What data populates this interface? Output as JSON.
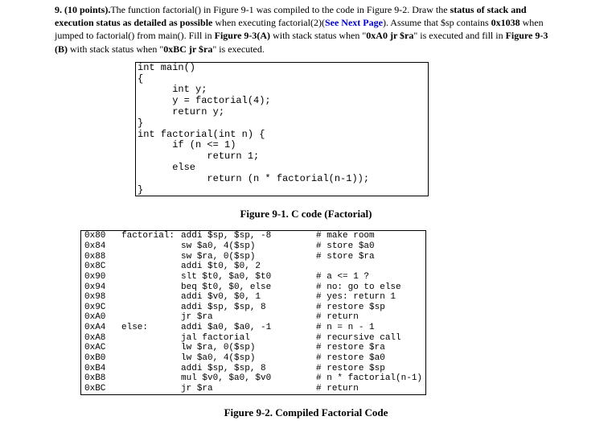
{
  "question": {
    "prefix": "9. (10 points).",
    "part1": "The function factorial() in Figure 9-1 was compiled to the code in Figure 9-2. Draw the ",
    "bold1": "status of stack and execution status as detailed as possible",
    "part2": " when executing factorial(2)(",
    "link": "See Next Page",
    "part3": "). Assume that $sp contains ",
    "b2": "0x1038",
    "part4": " when jumped to factorial() from main(). Fill in ",
    "b3": "Figure 9-3(A)",
    "part5": " with stack status when \"",
    "b4": "0xA0 jr $ra",
    "part6": "\" is executed and fill in ",
    "b5": "Figure 9-3 (B)",
    "part7": " with stack status when \"",
    "b6": "0xBC jr $ra",
    "part8": "\" is executed."
  },
  "c_code": {
    "text": "int main()\n{\n      int y;\n      y = factorial(4);\n      return y;\n}\nint factorial(int n) {\n      if (n <= 1)\n            return 1;\n      else\n            return (n * factorial(n-1));\n}"
  },
  "fig1_caption": "Figure 9-1. C code (Factorial)",
  "asm": {
    "rows": [
      {
        "addr": "0x80",
        "label": "factorial:",
        "instr": "addi $sp, $sp, -8",
        "comment": "# make room"
      },
      {
        "addr": "0x84",
        "label": "",
        "instr": "sw $a0, 4($sp)",
        "comment": "# store $a0"
      },
      {
        "addr": "0x88",
        "label": "",
        "instr": "sw $ra, 0($sp)",
        "comment": "# store $ra"
      },
      {
        "addr": "0x8C",
        "label": "",
        "instr": "addi $t0, $0, 2",
        "comment": ""
      },
      {
        "addr": "0x90",
        "label": "",
        "instr": "slt $t0, $a0, $t0",
        "comment": "# a <= 1 ?"
      },
      {
        "addr": "0x94",
        "label": "",
        "instr": "beq $t0, $0, else",
        "comment": "# no: go to else"
      },
      {
        "addr": "0x98",
        "label": "",
        "instr": "addi $v0, $0, 1",
        "comment": "# yes: return 1"
      },
      {
        "addr": "0x9C",
        "label": "",
        "instr": "addi $sp, $sp, 8",
        "comment": "# restore $sp"
      },
      {
        "addr": "0xA0",
        "label": "",
        "instr": "jr $ra",
        "comment": "# return"
      },
      {
        "addr": "0xA4",
        "label": "else:",
        "instr": "addi $a0, $a0, -1",
        "comment": "# n = n - 1"
      },
      {
        "addr": "0xA8",
        "label": "",
        "instr": "jal factorial",
        "comment": "# recursive call"
      },
      {
        "addr": "0xAC",
        "label": "",
        "instr": "lw $ra, 0($sp)",
        "comment": "# restore $ra"
      },
      {
        "addr": "0xB0",
        "label": "",
        "instr": "lw $a0, 4($sp)",
        "comment": "# restore $a0"
      },
      {
        "addr": "0xB4",
        "label": "",
        "instr": "addi $sp, $sp, 8",
        "comment": "# restore $sp"
      },
      {
        "addr": "0xB8",
        "label": "",
        "instr": "mul $v0, $a0, $v0",
        "comment": "# n * factorial(n-1)"
      },
      {
        "addr": "0xBC",
        "label": "",
        "instr": "jr $ra",
        "comment": "# return"
      }
    ]
  },
  "fig2_caption": "Figure 9-2. Compiled Factorial Code",
  "style": {
    "font_body": "Times New Roman",
    "font_code": "Courier New",
    "background": "#ffffff",
    "border_color": "#000000",
    "link_color": "#0000cc",
    "c_code_fontsize": 12,
    "asm_fontsize": 11,
    "body_fontsize": 12
  }
}
